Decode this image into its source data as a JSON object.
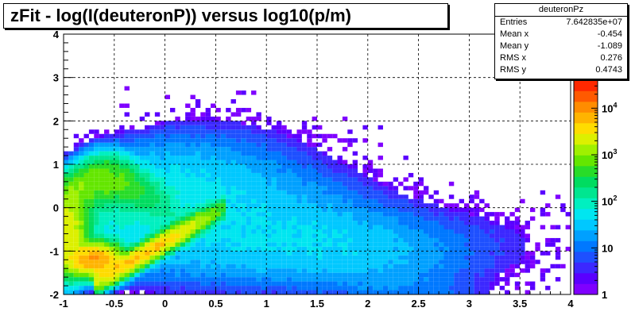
{
  "title": "zFit - log(I(deuteronP)) versus log10(p/m)",
  "stats": {
    "name": "deuteronPz",
    "rows": [
      {
        "label": "Entries",
        "value": "7.642835e+07"
      },
      {
        "label": "Mean x",
        "value": "-0.454"
      },
      {
        "label": "Mean y",
        "value": "-1.089"
      },
      {
        "label": "RMS x",
        "value": "0.276"
      },
      {
        "label": "RMS y",
        "value": "0.4743"
      }
    ]
  },
  "chart_data": {
    "type": "heatmap",
    "title": "zFit - log(I(deuteronP)) versus log10(p/m)",
    "xlabel": "",
    "ylabel": "",
    "xlim": [
      -1,
      4
    ],
    "ylim": [
      -2,
      4
    ],
    "x_ticks": [
      "-1",
      "-0.5",
      "0",
      "0.5",
      "1",
      "1.5",
      "2",
      "2.5",
      "3",
      "3.5",
      "4"
    ],
    "y_ticks": [
      "-2",
      "-1",
      "0",
      "1",
      "2",
      "3",
      "4"
    ],
    "grid": true,
    "z_scale": "log",
    "zlim": [
      1,
      40000
    ],
    "z_ticks": [
      {
        "value": 1,
        "base": "1",
        "exp": ""
      },
      {
        "value": 10,
        "base": "10",
        "exp": ""
      },
      {
        "value": 100,
        "base": "10",
        "exp": "2"
      },
      {
        "value": 1000,
        "base": "10",
        "exp": "3"
      },
      {
        "value": 10000,
        "base": "10",
        "exp": "4"
      }
    ],
    "palette": [
      "#7f00ff",
      "#5a00ff",
      "#3c28ff",
      "#1e50ff",
      "#0078ff",
      "#00a0ff",
      "#00c8ff",
      "#00e6f0",
      "#00f0c0",
      "#00e690",
      "#00dc60",
      "#28dc28",
      "#64e600",
      "#a0f000",
      "#dcf000",
      "#ffdc00",
      "#ffb400",
      "#ff8c00",
      "#ff5a00",
      "#ff2800"
    ]
  }
}
